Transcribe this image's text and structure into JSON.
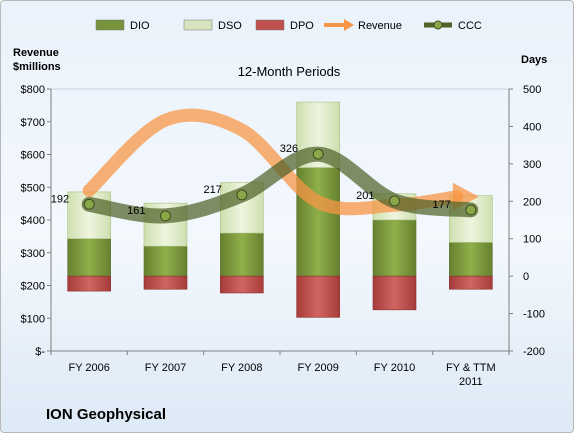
{
  "chart_data": {
    "type": "bar",
    "title": "12-Month Periods",
    "company": "ION Geophysical",
    "y_left_label": [
      "Revenue",
      "$millions"
    ],
    "y_right_label": "Days",
    "y_left_ticks": [
      "$-",
      "$100",
      "$200",
      "$300",
      "$400",
      "$500",
      "$600",
      "$700",
      "$800"
    ],
    "y_right_ticks": [
      "-200",
      "-100",
      "0",
      "100",
      "200",
      "300",
      "400",
      "500"
    ],
    "ylim_left": [
      0,
      800
    ],
    "ylim_right": [
      -200,
      500
    ],
    "categories": [
      [
        "FY 2006"
      ],
      [
        "FY 2007"
      ],
      [
        "FY 2008"
      ],
      [
        "FY 2009"
      ],
      [
        "FY 2010"
      ],
      [
        "FY & TTM",
        "2011"
      ]
    ],
    "legend": [
      "DIO",
      "DSO",
      "DPO",
      "Revenue",
      "CCC"
    ],
    "colors": {
      "DIO": "#77933c",
      "DSO": "#d7e4bd",
      "DPO": "#c0504d",
      "Revenue": "#f79646",
      "CCC": "#4f6228"
    },
    "series": [
      {
        "name": "DIO",
        "axis": "right",
        "values": [
          100,
          80,
          115,
          290,
          150,
          90
        ]
      },
      {
        "name": "DSO",
        "axis": "right",
        "values": [
          125,
          115,
          135,
          175,
          70,
          125
        ]
      },
      {
        "name": "DPO",
        "axis": "right",
        "values": [
          -40,
          -35,
          -45,
          -110,
          -90,
          -35
        ]
      },
      {
        "name": "Revenue",
        "axis": "left",
        "values": [
          490,
          705,
          675,
          455,
          445,
          465
        ]
      },
      {
        "name": "CCC",
        "axis": "right",
        "values": [
          192,
          161,
          217,
          326,
          201,
          177
        ]
      }
    ],
    "ccc_labels": [
      "192",
      "161",
      "217",
      "326",
      "201",
      "177"
    ],
    "grid": false,
    "legend_position": "top"
  }
}
